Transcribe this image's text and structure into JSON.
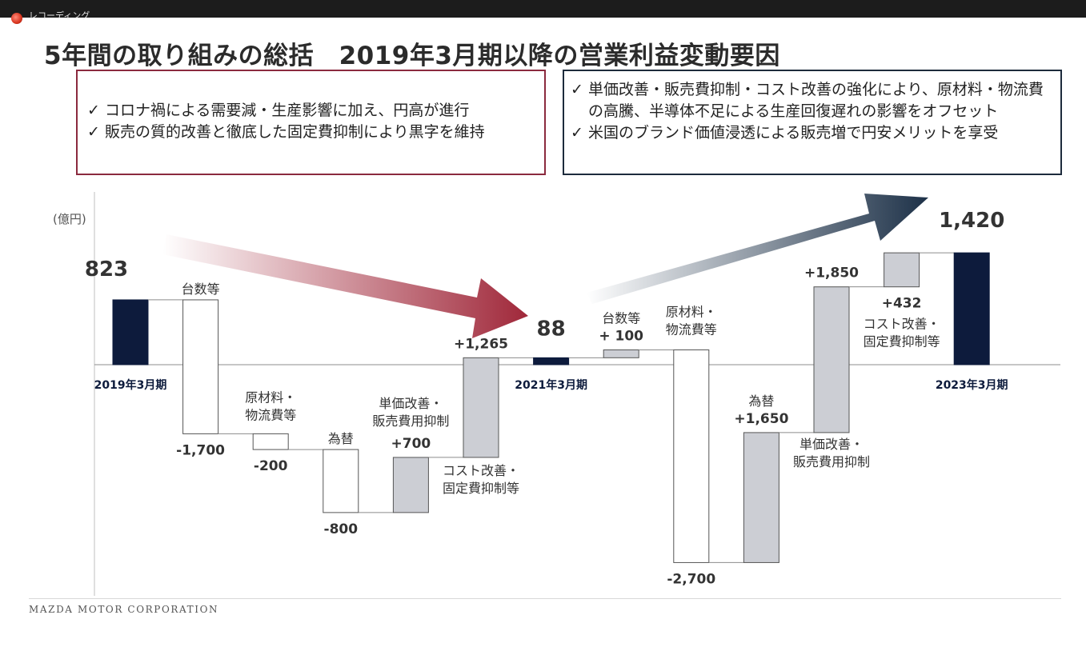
{
  "recording_label": "レコーディング",
  "title": "5年間の取り組みの総括　2019年3月期以降の営業利益変動要因",
  "left_box": {
    "bullets": [
      "コロナ禍による需要減・生産影響に加え、円高が進行",
      "販売の質的改善と徹底した固定費抑制により黒字を維持"
    ]
  },
  "right_box": {
    "bullets": [
      "単価改善・販売費抑制・コスト改善の強化により、原材料・物流費の高騰、半導体不足による生産回復遅れの影響をオフセット",
      "米国のブランド価値浸透による販売増で円安メリットを享受"
    ]
  },
  "footer": "MAZDA MOTOR CORPORATION",
  "colors": {
    "total": "#0d1b3c",
    "positive": "#ccced4",
    "negative": "#ffffff",
    "left_box_border": "#8b2a3e",
    "right_box_border": "#1d2b3c",
    "arrow_down": "#a0283a",
    "arrow_up": "#1d3148"
  },
  "chart_data": {
    "type": "bar",
    "subtype": "waterfall",
    "unit": "(億円)",
    "grid": false,
    "ylim": [
      -1700,
      1500
    ],
    "steps": [
      {
        "kind": "total",
        "value": 823,
        "value_label": "823",
        "category": "2019年3月期"
      },
      {
        "kind": "delta",
        "value": -1700,
        "value_label": "-1,700",
        "category": "台数等"
      },
      {
        "kind": "delta",
        "value": -200,
        "value_label": "-200",
        "category": "原材料・物流費等"
      },
      {
        "kind": "delta",
        "value": -800,
        "value_label": "-800",
        "category": "為替"
      },
      {
        "kind": "delta",
        "value": 700,
        "value_label": "+700",
        "category": "単価改善・販売費用抑制"
      },
      {
        "kind": "delta",
        "value": 1265,
        "value_label": "+1,265",
        "category": "コスト改善・固定費抑制等"
      },
      {
        "kind": "total",
        "value": 88,
        "value_label": "88",
        "category": "2021年3月期"
      },
      {
        "kind": "delta",
        "value": 100,
        "value_label": "+ 100",
        "category": "台数等"
      },
      {
        "kind": "delta",
        "value": -2700,
        "value_label": "-2,700",
        "category": "原材料・物流費等"
      },
      {
        "kind": "delta",
        "value": 1650,
        "value_label": "+1,650",
        "category": "為替"
      },
      {
        "kind": "delta",
        "value": 1850,
        "value_label": "+1,850",
        "category": "単価改善・販売費用抑制"
      },
      {
        "kind": "delta",
        "value": 432,
        "value_label": "+432",
        "category": "コスト改善・固定費抑制等"
      },
      {
        "kind": "total",
        "value": 1420,
        "value_label": "1,420",
        "category": "2023年3月期"
      }
    ]
  }
}
